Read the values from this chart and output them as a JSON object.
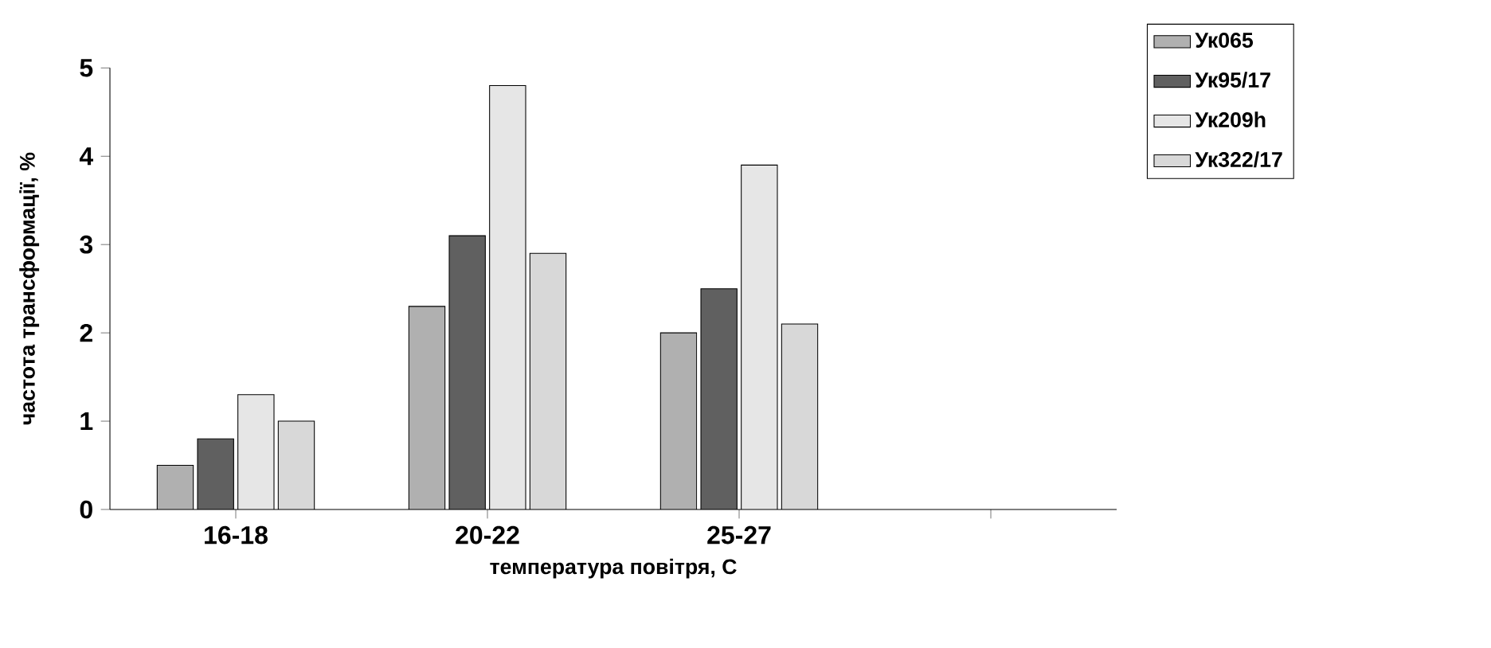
{
  "chart_data": {
    "type": "bar",
    "xlabel": "температура повітря, С",
    "ylabel": "частота трансформації, %",
    "categories": [
      "16-18",
      "20-22",
      "25-27",
      null
    ],
    "series": [
      {
        "name": "Ук065",
        "color": "#b0b0b0",
        "values": [
          0.5,
          2.3,
          2.0,
          null
        ]
      },
      {
        "name": "Ук95/17",
        "color": "#606060",
        "values": [
          0.8,
          3.1,
          2.5,
          null
        ]
      },
      {
        "name": "Ук209h",
        "color": "#e6e6e6",
        "values": [
          1.3,
          4.8,
          3.9,
          null
        ]
      },
      {
        "name": "Ук322/17",
        "color": "#d8d8d8",
        "values": [
          1.0,
          2.9,
          2.1,
          null
        ]
      }
    ],
    "ylim": [
      0,
      5
    ],
    "yticks": [
      0,
      1,
      2,
      3,
      4,
      5
    ],
    "grid": false,
    "legend": "top right"
  }
}
